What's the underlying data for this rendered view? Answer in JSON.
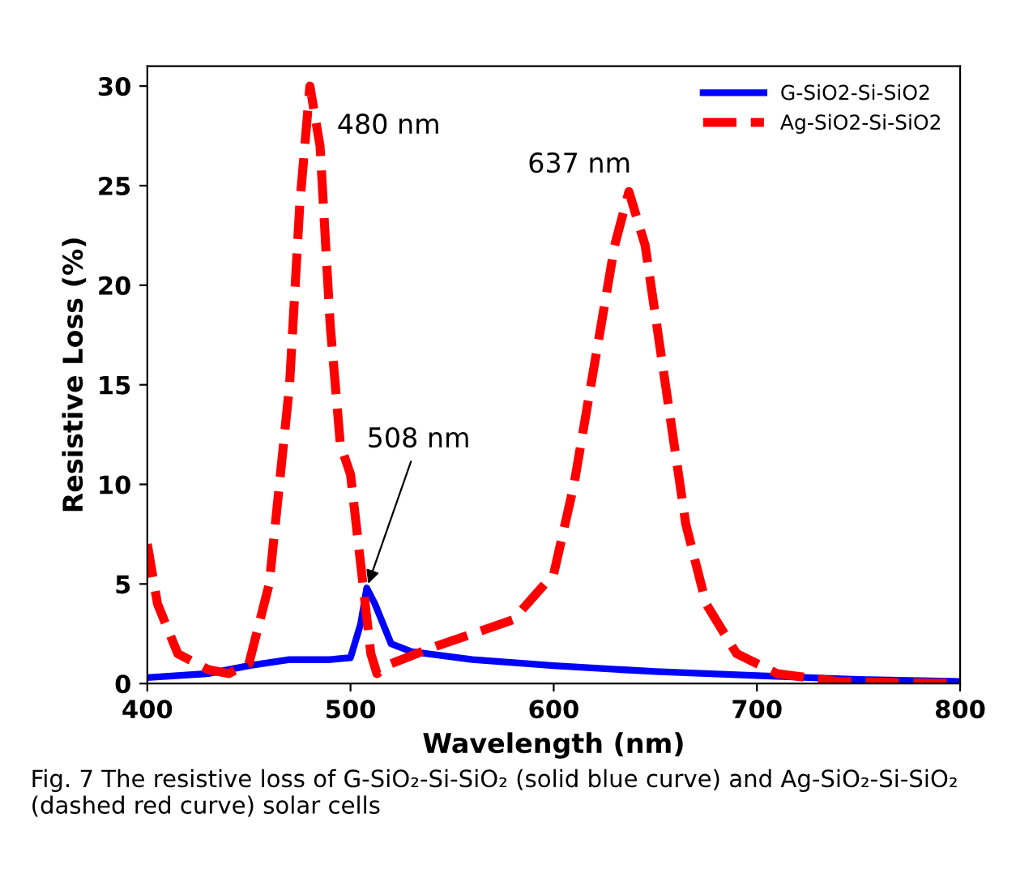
{
  "chart_data": {
    "type": "line",
    "xlabel": "Wavelength (nm)",
    "ylabel": "Resistive Loss (%)",
    "xlim": [
      400,
      800
    ],
    "ylim": [
      0,
      31
    ],
    "xticks": [
      400,
      500,
      600,
      700,
      800
    ],
    "yticks": [
      0,
      5,
      10,
      15,
      20,
      25,
      30
    ],
    "grid": false,
    "legend": "top right",
    "series": [
      {
        "name": "G-SiO2-Si-SiO2",
        "color": "#0000ff",
        "line_style": "solid",
        "x": [
          400,
          430,
          450,
          470,
          490,
          500,
          505,
          508,
          512,
          520,
          530,
          560,
          600,
          650,
          700,
          750,
          800
        ],
        "values": [
          0.3,
          0.5,
          0.9,
          1.2,
          1.2,
          1.3,
          3,
          4.8,
          4,
          2,
          1.6,
          1.2,
          0.9,
          0.6,
          0.4,
          0.2,
          0.1
        ]
      },
      {
        "name": "Ag-SiO2-Si-SiO2",
        "color": "#ff0000",
        "line_style": "dashed",
        "x": [
          400,
          405,
          415,
          430,
          440,
          450,
          460,
          470,
          475,
          480,
          485,
          490,
          495,
          500,
          505,
          510,
          513,
          520,
          540,
          560,
          580,
          600,
          610,
          620,
          630,
          637,
          645,
          655,
          665,
          675,
          690,
          710,
          740,
          800
        ],
        "values": [
          7,
          4,
          1.5,
          0.7,
          0.5,
          1,
          5,
          15,
          24,
          30,
          27,
          18,
          12,
          10.5,
          6,
          1.5,
          0.5,
          1,
          1.8,
          2.5,
          3.2,
          5.5,
          10,
          16,
          22,
          24.7,
          22,
          15,
          8,
          4,
          1.5,
          0.5,
          0.1,
          0
        ]
      }
    ],
    "annotations": [
      {
        "text": "480 nm",
        "x": 480,
        "y": 30
      },
      {
        "text": "637 nm",
        "x": 637,
        "y": 24.7
      },
      {
        "text": "508 nm",
        "x": 508,
        "y": 4.8
      },
      "Fig. 7 The resistive loss of G-SiO₂-Si-SiO₂ (solid blue curve) and Ag-SiO₂-Si-SiO₂ (dashed red curve) solar cells"
    ]
  }
}
